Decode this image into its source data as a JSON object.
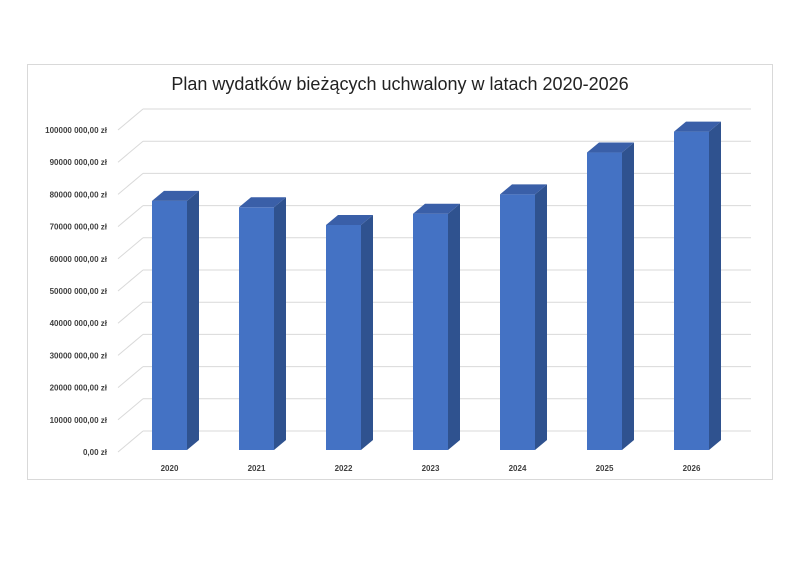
{
  "chart_data": {
    "type": "bar",
    "title": "Plan wydatków bieżących uchwalony w latach 2020-2026",
    "xlabel": "",
    "ylabel": "",
    "categories": [
      "2020",
      "2021",
      "2022",
      "2023",
      "2024",
      "2025",
      "2026"
    ],
    "values": [
      78000000,
      76000000,
      70500000,
      74000000,
      80000000,
      93000000,
      99500000
    ],
    "ylim": [
      0,
      100000000
    ],
    "y_ticks": [
      {
        "value": 0,
        "label": "0,00 zł"
      },
      {
        "value": 10000000,
        "label": "10000 000,00 zł"
      },
      {
        "value": 20000000,
        "label": "20000 000,00 zł"
      },
      {
        "value": 30000000,
        "label": "30000 000,00 zł"
      },
      {
        "value": 40000000,
        "label": "40000 000,00 zł"
      },
      {
        "value": 50000000,
        "label": "50000 000,00 zł"
      },
      {
        "value": 60000000,
        "label": "60000 000,00 zł"
      },
      {
        "value": 70000000,
        "label": "70000 000,00 zł"
      },
      {
        "value": 80000000,
        "label": "80000 000,00 zł"
      },
      {
        "value": 90000000,
        "label": "90000 000,00 zł"
      },
      {
        "value": 100000000,
        "label": "100000 000,00 zł"
      }
    ],
    "grid": true,
    "legend": "none",
    "colors": {
      "bar_front": "#4472c4",
      "bar_side": "#2f528f",
      "bar_top": "#3a5fa8",
      "grid": "#d9d9d9"
    }
  }
}
